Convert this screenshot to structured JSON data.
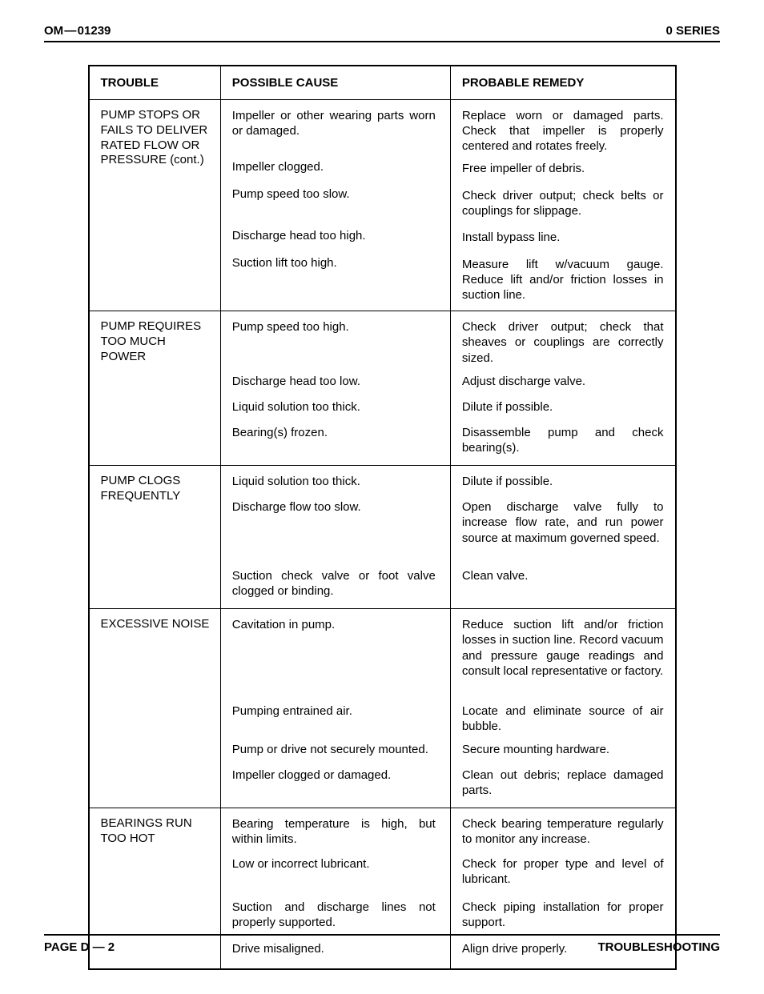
{
  "header": {
    "doc_id": "OM — 01239",
    "series": "0 SERIES"
  },
  "table": {
    "columns": [
      "TROUBLE",
      "POSSIBLE CAUSE",
      "PROBABLE REMEDY"
    ],
    "sections": [
      {
        "trouble": "PUMP STOPS OR FAILS TO DELIVER RATED FLOW OR PRESSURE (cont.)",
        "rows": [
          {
            "cause": "Impeller or other wearing parts worn or damaged.",
            "remedy": "Replace worn or damaged parts. Check that impeller is properly centered and rotates freely."
          },
          {
            "cause": "Impeller clogged.",
            "remedy": "Free impeller of debris."
          },
          {
            "cause": "Pump speed too slow.",
            "remedy": "Check driver output; check belts or couplings for slippage."
          },
          {
            "cause": "Discharge head too high.",
            "remedy": "Install bypass line."
          },
          {
            "cause": "Suction lift too high.",
            "remedy": "Measure lift w/vacuum gauge. Reduce lift and/or friction losses in suction line."
          }
        ]
      },
      {
        "trouble": "PUMP REQUIRES TOO MUCH POWER",
        "rows": [
          {
            "cause": "Pump speed too high.",
            "remedy": "Check driver output; check that sheaves or couplings are correctly sized."
          },
          {
            "cause": "Discharge head too low.",
            "remedy": "Adjust discharge valve."
          },
          {
            "cause": "Liquid solution too thick.",
            "remedy": "Dilute if possible."
          },
          {
            "cause": "Bearing(s) frozen.",
            "remedy": "Disassemble pump and check bearing(s)."
          }
        ]
      },
      {
        "trouble": "PUMP CLOGS FREQUENTLY",
        "rows": [
          {
            "cause": "Liquid solution too thick.",
            "remedy": "Dilute if possible."
          },
          {
            "cause": "Discharge flow too slow.",
            "remedy": "Open discharge valve fully to increase flow rate, and run power source at maximum governed speed."
          },
          {
            "cause": "Suction check valve or foot valve clogged or binding.",
            "remedy": "Clean valve."
          }
        ]
      },
      {
        "trouble": "EXCESSIVE NOISE",
        "rows": [
          {
            "cause": "Cavitation in pump.",
            "remedy": "Reduce suction lift and/or friction losses in suction line. Record vacuum and pressure gauge readings and consult local representative or factory."
          },
          {
            "cause": "Pumping entrained air.",
            "remedy": "Locate and eliminate source of air bubble."
          },
          {
            "cause": "Pump or drive not securely mounted.",
            "remedy": "Secure mounting hardware."
          },
          {
            "cause": "Impeller clogged or damaged.",
            "remedy": "Clean out debris; replace damaged parts."
          }
        ]
      },
      {
        "trouble": "BEARINGS RUN TOO HOT",
        "rows": [
          {
            "cause": "Bearing temperature is high, but within limits.",
            "remedy": "Check bearing temperature regularly to monitor any increase."
          },
          {
            "cause": "Low or incorrect lubricant.",
            "remedy": "Check for proper type and level of lubricant."
          },
          {
            "cause": "Suction and discharge lines not properly supported.",
            "remedy": "Check piping installation for proper support."
          },
          {
            "cause": "Drive misaligned.",
            "remedy": "Align drive properly."
          }
        ]
      }
    ]
  },
  "footer": {
    "page": "PAGE D — 2",
    "section": "TROUBLESHOOTING"
  }
}
